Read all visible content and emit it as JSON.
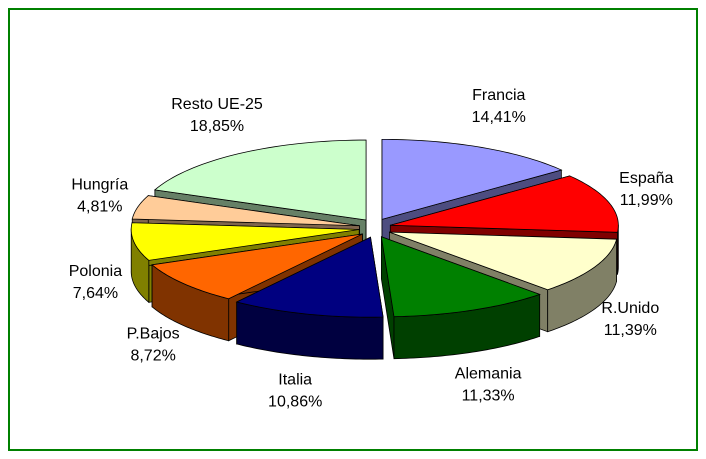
{
  "chart_data": {
    "type": "pie",
    "categories": [
      "Francia",
      "España",
      "R.Unido",
      "Alemania",
      "Italia",
      "P.Bajos",
      "Polonia",
      "Hungría",
      "Resto UE-25"
    ],
    "values": [
      14.41,
      11.99,
      11.39,
      11.33,
      10.86,
      8.72,
      7.64,
      4.81,
      18.85
    ],
    "value_labels": [
      "14,41%",
      "11,99%",
      "11,39%",
      "11,33%",
      "10,86%",
      "8,72%",
      "7,64%",
      "4,81%",
      "18,85%"
    ],
    "colors": [
      "#9999ff",
      "#ff0000",
      "#ffffcc",
      "#008000",
      "#000080",
      "#ff6600",
      "#ffff00",
      "#ffcc99",
      "#ccffcc"
    ]
  }
}
